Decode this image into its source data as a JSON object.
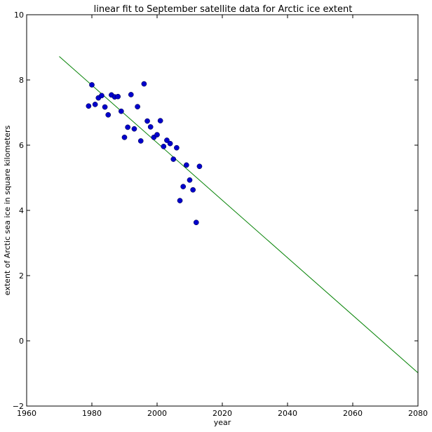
{
  "chart_data": {
    "type": "scatter",
    "title": "linear fit to September satellite data for Arctic ice extent",
    "xlabel": "year",
    "ylabel": "extent of Arctic sea ice in square kilometers",
    "xlim": [
      1960,
      2080
    ],
    "ylim": [
      -2,
      10
    ],
    "xticks": [
      1960,
      1980,
      2000,
      2020,
      2040,
      2060,
      2080
    ],
    "yticks": [
      -2,
      0,
      2,
      4,
      6,
      8,
      10
    ],
    "grid": false,
    "colors": {
      "points": "#0000cc",
      "fit_line": "#008000",
      "axes": "#000000"
    },
    "series": [
      {
        "kind": "scatter",
        "x": [
          1979,
          1980,
          1981,
          1982,
          1983,
          1984,
          1985,
          1986,
          1987,
          1988,
          1989,
          1990,
          1991,
          1992,
          1993,
          1994,
          1995,
          1996,
          1997,
          1998,
          1999,
          2000,
          2001,
          2002,
          2003,
          2004,
          2005,
          2006,
          2007,
          2008,
          2009,
          2010,
          2011,
          2012,
          2013
        ],
        "y": [
          7.2,
          7.85,
          7.25,
          7.45,
          7.52,
          7.17,
          6.93,
          7.54,
          7.48,
          7.49,
          7.04,
          6.24,
          6.55,
          7.55,
          6.5,
          7.18,
          6.13,
          7.88,
          6.74,
          6.56,
          6.24,
          6.32,
          6.75,
          5.96,
          6.15,
          6.05,
          5.57,
          5.92,
          4.3,
          4.73,
          5.39,
          4.93,
          4.63,
          3.63,
          5.35
        ]
      },
      {
        "kind": "line",
        "x": [
          1970,
          2080
        ],
        "y": [
          8.72,
          -0.98
        ]
      }
    ]
  }
}
